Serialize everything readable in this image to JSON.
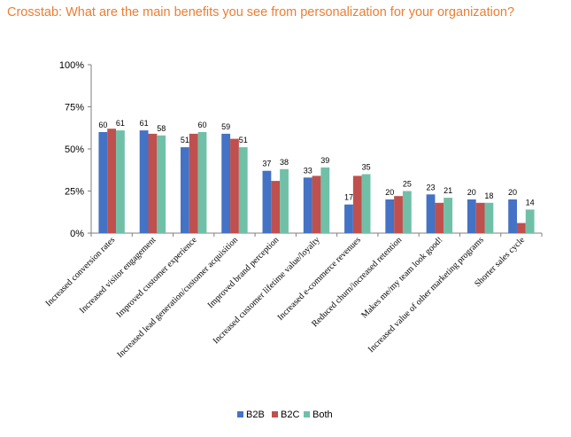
{
  "title": "Crosstab: What are the main benefits you see from personalization for your organization?",
  "chart_data": {
    "type": "bar",
    "title": "Crosstab: What are the main benefits you see from personalization for your organization?",
    "categories": [
      "Increased conversion rates",
      "Increased visitor engagement",
      "Improved customer experience",
      "Increased lead generation/customer acquisition",
      "Improved brand perception",
      "Increased customer lifetime value/loyalty",
      "Increased e-commerce revenues",
      "Reduced churn/increased retention",
      "Makes me/my team look good!",
      "Increased value of other marketing programs",
      "Shorter sales cycle"
    ],
    "series": [
      {
        "name": "B2B",
        "color": "#4472c4",
        "values": [
          60,
          61,
          51,
          59,
          37,
          33,
          17,
          20,
          23,
          20,
          20
        ],
        "labels": [
          "60",
          "61",
          "51",
          "59",
          "37",
          "33",
          "17",
          "20",
          "23",
          "20",
          "20"
        ]
      },
      {
        "name": "B2C",
        "color": "#c0504d",
        "values": [
          62,
          59,
          59,
          56,
          31,
          34,
          34,
          22,
          18,
          18,
          6
        ],
        "labels": [
          "",
          "",
          "",
          "",
          "",
          "",
          "",
          "",
          "",
          "",
          ""
        ]
      },
      {
        "name": "Both",
        "color": "#70c0a8",
        "values": [
          61,
          58,
          60,
          51,
          38,
          39,
          35,
          25,
          21,
          18,
          14
        ],
        "labels": [
          "61",
          "58",
          "60",
          "51",
          "38",
          "39",
          "35",
          "25",
          "21",
          "18",
          "14"
        ]
      }
    ],
    "ylim": [
      0,
      100
    ],
    "yticks": [
      "0%",
      "25%",
      "50%",
      "75%",
      "100%"
    ],
    "ytick_values": [
      0,
      25,
      50,
      75,
      100
    ],
    "grid": false,
    "legend": "bottom"
  }
}
